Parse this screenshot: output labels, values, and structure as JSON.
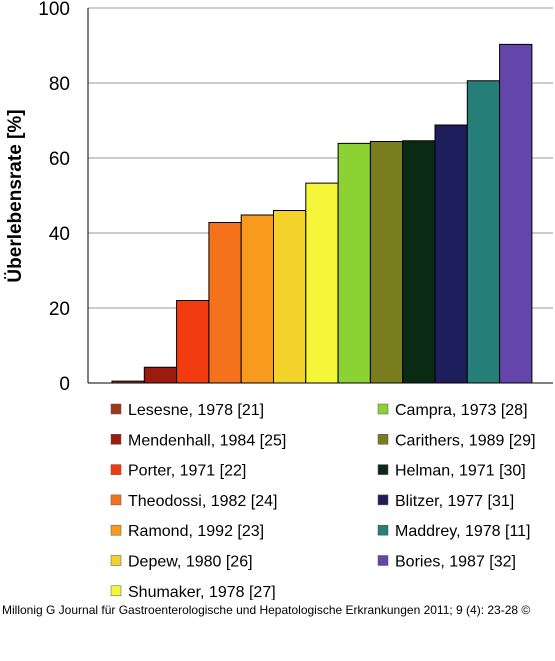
{
  "chart_data": {
    "type": "bar",
    "ylabel": "Überlebensrate [%]",
    "ylim": [
      0,
      100
    ],
    "yticks": [
      0,
      20,
      40,
      60,
      80,
      100
    ],
    "grid": true,
    "legend_position": "bottom",
    "series": [
      {
        "name": "Lesesne, 1978 [21]",
        "value": 0.5,
        "color": "#a0391a"
      },
      {
        "name": "Mendenhall, 1984 [25]",
        "value": 4.2,
        "color": "#9c1a10"
      },
      {
        "name": "Porter, 1971 [22]",
        "value": 22,
        "color": "#f23c0f"
      },
      {
        "name": "Theodossi, 1982 [24]",
        "value": 42.8,
        "color": "#f4721c"
      },
      {
        "name": "Ramond, 1992 [23]",
        "value": 44.8,
        "color": "#f79a1e"
      },
      {
        "name": "Depew, 1980 [26]",
        "value": 46,
        "color": "#f4d22c"
      },
      {
        "name": "Shumaker, 1978 [27]",
        "value": 53.3,
        "color": "#f5f53a"
      },
      {
        "name": "Campra, 1973 [28]",
        "value": 63.9,
        "color": "#8cd232"
      },
      {
        "name": "Carithers, 1989 [29]",
        "value": 64.4,
        "color": "#7a7d1e"
      },
      {
        "name": "Helman, 1971 [30]",
        "value": 64.6,
        "color": "#0b2a14"
      },
      {
        "name": "Blitzer, 1977 [31]",
        "value": 68.8,
        "color": "#1e1e5c"
      },
      {
        "name": "Maddrey, 1978 [11]",
        "value": 80.6,
        "color": "#257e78"
      },
      {
        "name": "Bories, 1987 [32]",
        "value": 90.3,
        "color": "#6446aa"
      }
    ]
  },
  "caption": "Millonig G Journal für Gastroenterologische und Hepatologische Erkrankungen 2011; 9 (4): 23-28 ©"
}
